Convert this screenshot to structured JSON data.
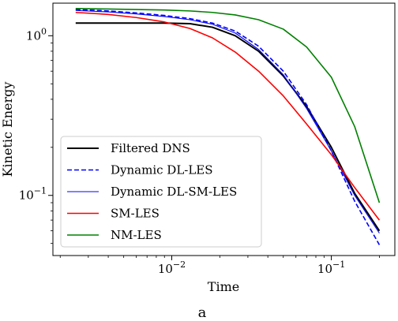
{
  "chart_data": {
    "type": "line",
    "xlabel": "Time",
    "ylabel": "Kinetic Energy",
    "xscale": "log",
    "yscale": "log",
    "xlim": [
      0.0018,
      0.25
    ],
    "ylim": [
      0.042,
      1.6
    ],
    "x_ticks": [
      {
        "value": 0.01,
        "base": "10",
        "exp": "−2"
      },
      {
        "value": 0.1,
        "base": "10",
        "exp": "−1"
      }
    ],
    "y_ticks": [
      {
        "value": 1.0,
        "base": "10",
        "exp": "0"
      },
      {
        "value": 0.1,
        "base": "10",
        "exp": "−1"
      }
    ],
    "grid": false,
    "legend_position": "lower-left",
    "series": [
      {
        "name": "Filtered DNS",
        "color": "#000000",
        "dash": "solid",
        "width": 2,
        "x": [
          0.0025,
          0.004,
          0.006,
          0.009,
          0.013,
          0.018,
          0.025,
          0.035,
          0.05,
          0.07,
          0.1,
          0.14,
          0.2
        ],
        "y": [
          1.2,
          1.2,
          1.2,
          1.2,
          1.19,
          1.13,
          1.0,
          0.8,
          0.56,
          0.36,
          0.2,
          0.103,
          0.06
        ]
      },
      {
        "name": "Dynamic DL-LES",
        "color": "#0000ff",
        "dash": "dashed",
        "width": 1.6,
        "x": [
          0.0025,
          0.004,
          0.006,
          0.009,
          0.013,
          0.018,
          0.025,
          0.035,
          0.05,
          0.07,
          0.1,
          0.14,
          0.2
        ],
        "y": [
          1.46,
          1.43,
          1.39,
          1.34,
          1.28,
          1.2,
          1.07,
          0.86,
          0.6,
          0.37,
          0.19,
          0.092,
          0.049
        ]
      },
      {
        "name": "Dynamic DL-SM-LES",
        "color": "#0000ff",
        "dash": "solid",
        "width": 1.1,
        "x": [
          0.0025,
          0.004,
          0.006,
          0.009,
          0.013,
          0.018,
          0.025,
          0.035,
          0.05,
          0.07,
          0.1,
          0.14,
          0.2
        ],
        "y": [
          1.44,
          1.41,
          1.37,
          1.32,
          1.26,
          1.18,
          1.04,
          0.82,
          0.57,
          0.35,
          0.19,
          0.1,
          0.058
        ]
      },
      {
        "name": "SM-LES",
        "color": "#ff0000",
        "dash": "solid",
        "width": 1.6,
        "x": [
          0.0025,
          0.004,
          0.006,
          0.009,
          0.013,
          0.018,
          0.025,
          0.035,
          0.05,
          0.07,
          0.1,
          0.14,
          0.2
        ],
        "y": [
          1.4,
          1.36,
          1.3,
          1.22,
          1.11,
          0.97,
          0.79,
          0.6,
          0.42,
          0.28,
          0.18,
          0.112,
          0.07
        ]
      },
      {
        "name": "NM-LES",
        "color": "#008000",
        "dash": "solid",
        "width": 1.6,
        "x": [
          0.0025,
          0.004,
          0.006,
          0.009,
          0.013,
          0.018,
          0.025,
          0.035,
          0.05,
          0.07,
          0.1,
          0.14,
          0.2
        ],
        "y": [
          1.48,
          1.47,
          1.46,
          1.45,
          1.43,
          1.4,
          1.35,
          1.26,
          1.1,
          0.85,
          0.55,
          0.27,
          0.09
        ]
      }
    ]
  },
  "caption": "a"
}
